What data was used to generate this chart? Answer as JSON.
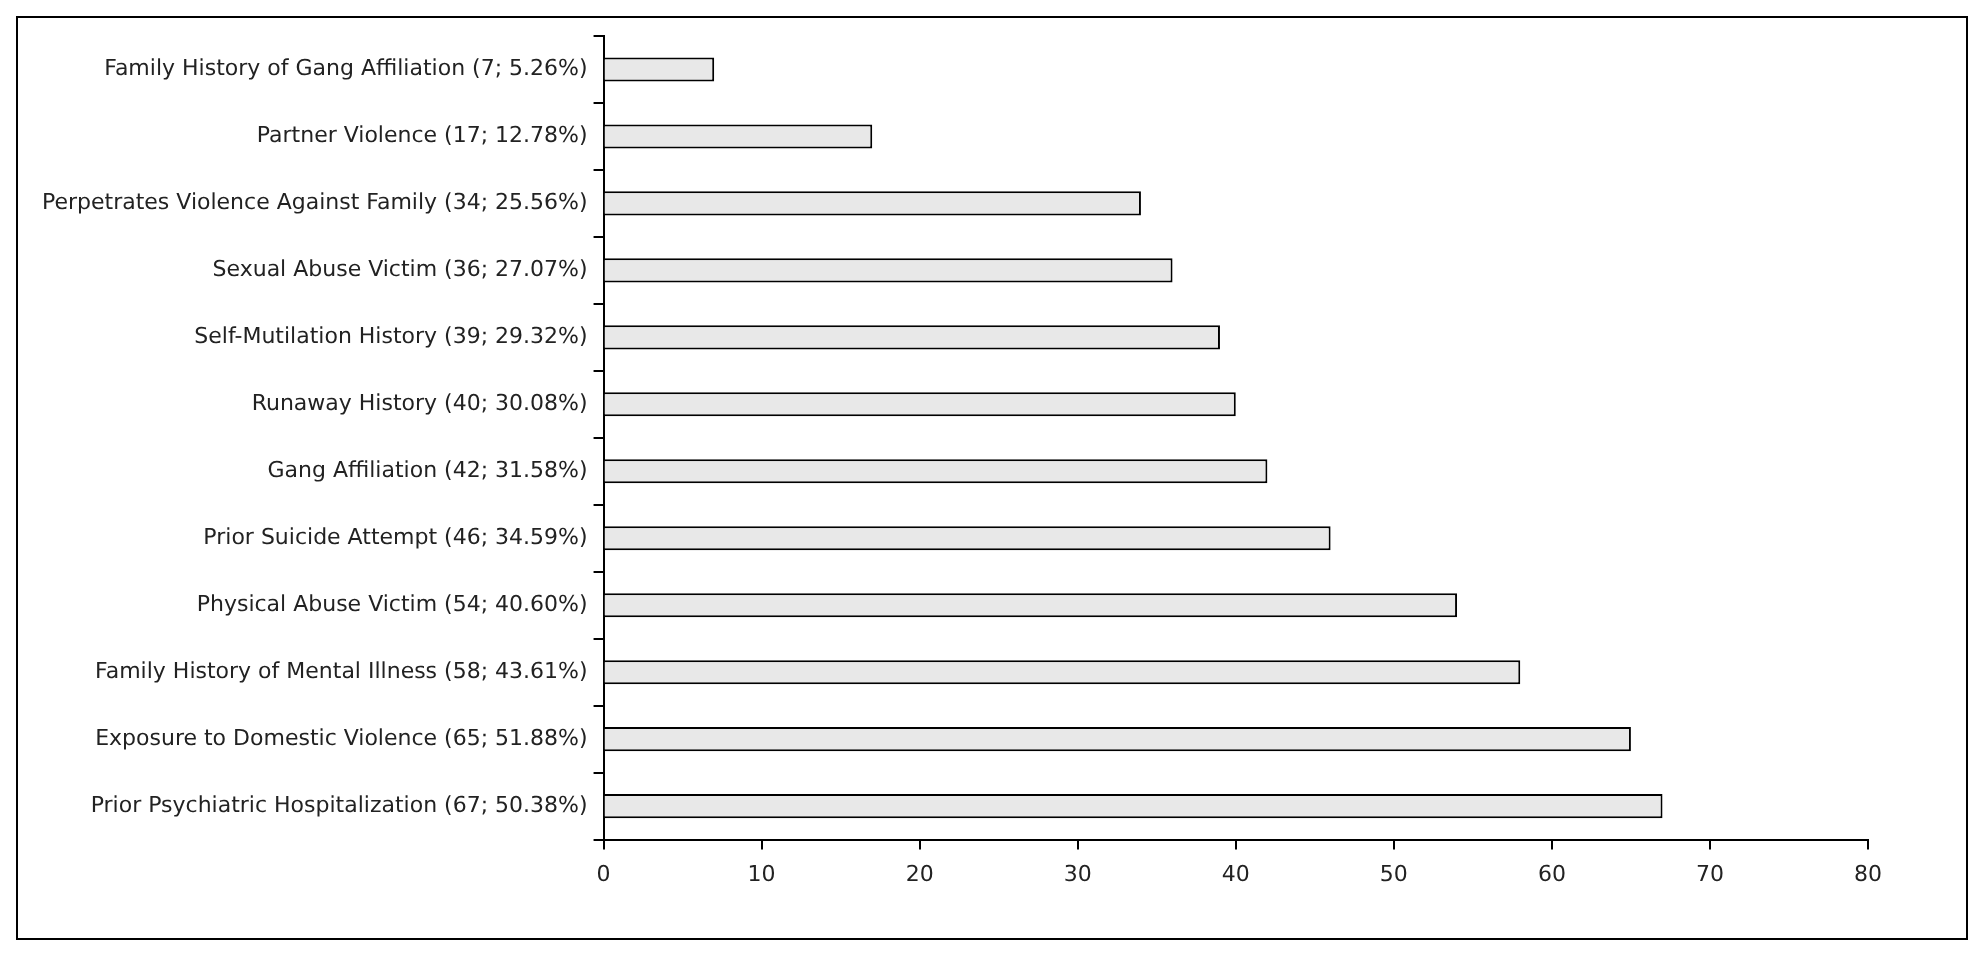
{
  "chart_data": {
    "type": "bar",
    "orientation": "horizontal",
    "categories": [
      "Family History of Gang Affiliation (7; 5.26%)",
      "Partner Violence (17; 12.78%)",
      "Perpetrates Violence Against Family (34; 25.56%)",
      "Sexual Abuse Victim (36; 27.07%)",
      "Self-Mutilation History (39; 29.32%)",
      "Runaway History (40; 30.08%)",
      "Gang Affiliation (42; 31.58%)",
      "Prior Suicide Attempt (46; 34.59%)",
      "Physical Abuse Victim (54; 40.60%)",
      "Family History of Mental Illness (58; 43.61%)",
      "Exposure to Domestic Violence (65; 51.88%)",
      "Prior Psychiatric Hospitalization (67; 50.38%)"
    ],
    "values": [
      7,
      17,
      34,
      36,
      39,
      40,
      42,
      46,
      54,
      58,
      65,
      67
    ],
    "color": "#e8e8e8",
    "xlim": [
      0,
      80
    ],
    "xticks": [
      0,
      10,
      20,
      30,
      40,
      50,
      60,
      70,
      80
    ],
    "legend": false
  }
}
